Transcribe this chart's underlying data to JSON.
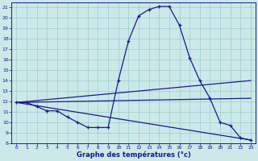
{
  "xlabel": "Graphe des températures (°c)",
  "bg_color": "#cce8e8",
  "grid_color": "#99cccc",
  "line_color": "#1a1a8c",
  "xlim": [
    -0.5,
    23.5
  ],
  "ylim": [
    8,
    21.5
  ],
  "yticks": [
    8,
    9,
    10,
    11,
    12,
    13,
    14,
    15,
    16,
    17,
    18,
    19,
    20,
    21
  ],
  "xticks": [
    0,
    1,
    2,
    3,
    4,
    5,
    6,
    7,
    8,
    9,
    10,
    11,
    12,
    13,
    14,
    15,
    16,
    17,
    18,
    19,
    20,
    21,
    22,
    23
  ],
  "line1_x": [
    0,
    1,
    2,
    3,
    4,
    5,
    6,
    7,
    8,
    9,
    10,
    11,
    12,
    13,
    14,
    15,
    16,
    17,
    18,
    19,
    20,
    21,
    22,
    23
  ],
  "line1_y": [
    11.9,
    11.9,
    11.5,
    11.1,
    11.1,
    10.5,
    10.0,
    9.5,
    9.5,
    9.5,
    14.0,
    17.8,
    20.2,
    20.8,
    21.1,
    21.1,
    19.3,
    16.2,
    14.0,
    12.3,
    10.0,
    9.7,
    8.5,
    8.3
  ],
  "line2_x": [
    0,
    23
  ],
  "line2_y": [
    11.9,
    8.3
  ],
  "line3_x": [
    0,
    23
  ],
  "line3_y": [
    11.9,
    12.3
  ],
  "line4_x": [
    0,
    23
  ],
  "line4_y": [
    11.9,
    14.0
  ],
  "xlabel_fontsize": 6,
  "tick_fontsize": 4.5,
  "ylabel_fontsize": 5
}
